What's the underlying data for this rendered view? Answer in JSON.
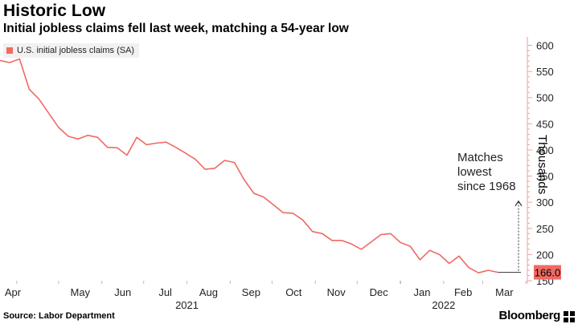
{
  "title": "Historic Low",
  "subtitle": "Initial jobless claims fell last week, matching a 54-year low",
  "legend_label": "U.S. initial jobless claims (SA)",
  "source": "Source: Labor Department",
  "brand": "Bloomberg",
  "annotation": [
    "Matches",
    "lowest",
    "since 1968"
  ],
  "ylabel": "Thousands",
  "colors": {
    "series": "#ef6a64",
    "axis": "#f0a09a",
    "grid": "#e6e6e6",
    "callout_bg": "#ef6a64"
  },
  "chart_data": {
    "type": "line",
    "title": "Historic Low",
    "subtitle": "Initial jobless claims fell last week, matching a 54-year low",
    "ylabel": "Thousands",
    "xlabel": "",
    "ylim": [
      150,
      610
    ],
    "yticks": [
      150,
      200,
      250,
      300,
      350,
      400,
      450,
      500,
      550,
      600
    ],
    "y_axis_side": "right",
    "grid": false,
    "legend": "top-left",
    "x_tick_labels": [
      "Apr",
      "May",
      "Jun",
      "Jul",
      "Aug",
      "Sep",
      "Oct",
      "Nov",
      "Dec",
      "Jan",
      "Feb",
      "Mar"
    ],
    "year_labels": [
      "2021",
      "2022"
    ],
    "last_value_label": "166.0",
    "series": [
      {
        "name": "U.S. initial jobless claims (SA)",
        "x": [
          "2021-03-20",
          "2021-03-27",
          "2021-04-03",
          "2021-04-10",
          "2021-04-17",
          "2021-04-24",
          "2021-05-01",
          "2021-05-08",
          "2021-05-15",
          "2021-05-22",
          "2021-05-29",
          "2021-06-05",
          "2021-06-12",
          "2021-06-19",
          "2021-06-26",
          "2021-07-03",
          "2021-07-10",
          "2021-07-17",
          "2021-07-24",
          "2021-07-31",
          "2021-08-07",
          "2021-08-14",
          "2021-08-21",
          "2021-08-28",
          "2021-09-04",
          "2021-09-11",
          "2021-09-18",
          "2021-09-25",
          "2021-10-02",
          "2021-10-09",
          "2021-10-16",
          "2021-10-23",
          "2021-10-30",
          "2021-11-06",
          "2021-11-13",
          "2021-11-20",
          "2021-11-27",
          "2021-12-04",
          "2021-12-11",
          "2021-12-18",
          "2021-12-25",
          "2022-01-01",
          "2022-01-08",
          "2022-01-15",
          "2022-01-22",
          "2022-01-29",
          "2022-02-05",
          "2022-02-12",
          "2022-02-19",
          "2022-02-26",
          "2022-03-05",
          "2022-03-12",
          "2022-03-19",
          "2022-03-26",
          "2022-04-02"
        ],
        "values": [
          571,
          567,
          574,
          516,
          497,
          470,
          443,
          426,
          421,
          428,
          424,
          405,
          404,
          390,
          424,
          410,
          413,
          415,
          405,
          394,
          382,
          363,
          365,
          380,
          376,
          343,
          317,
          310,
          295,
          280,
          279,
          266,
          244,
          240,
          227,
          227,
          220,
          210,
          224,
          238,
          240,
          223,
          216,
          190,
          208,
          200,
          183,
          197,
          175,
          165,
          170,
          166,
          null,
          null,
          null
        ]
      }
    ]
  }
}
